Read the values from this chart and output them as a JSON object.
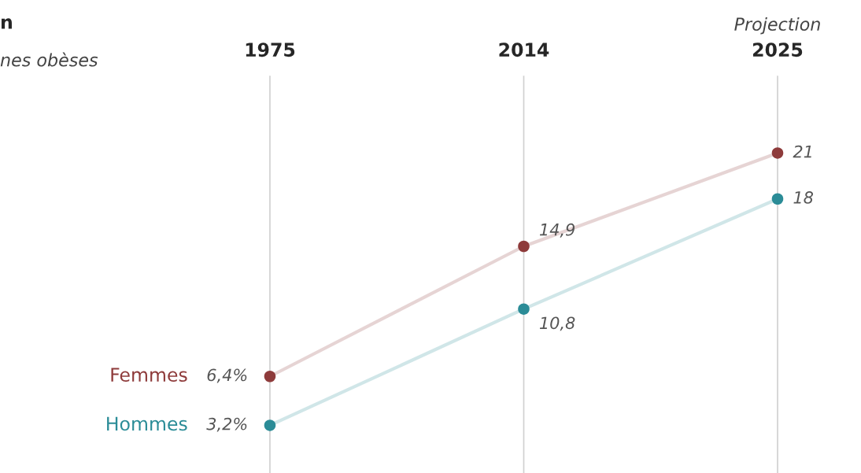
{
  "chart_data": {
    "type": "line",
    "title": "n",
    "subtitle": "nes obèses",
    "categories": [
      "1975",
      "2014",
      "2025"
    ],
    "series": [
      {
        "name": "Femmes",
        "color": "#8e3b3b",
        "values": [
          6.4,
          14.9,
          21
        ],
        "value_labels": [
          "6,4%",
          "14,9",
          "21"
        ]
      },
      {
        "name": "Hommes",
        "color": "#2b8c97",
        "values": [
          3.2,
          10.8,
          18
        ],
        "value_labels": [
          "3,2%",
          "10,8",
          "18"
        ]
      }
    ],
    "annotations": [
      "Projection"
    ],
    "grid": "x",
    "marker": "circle",
    "tick_labels": "x",
    "legend": false
  }
}
